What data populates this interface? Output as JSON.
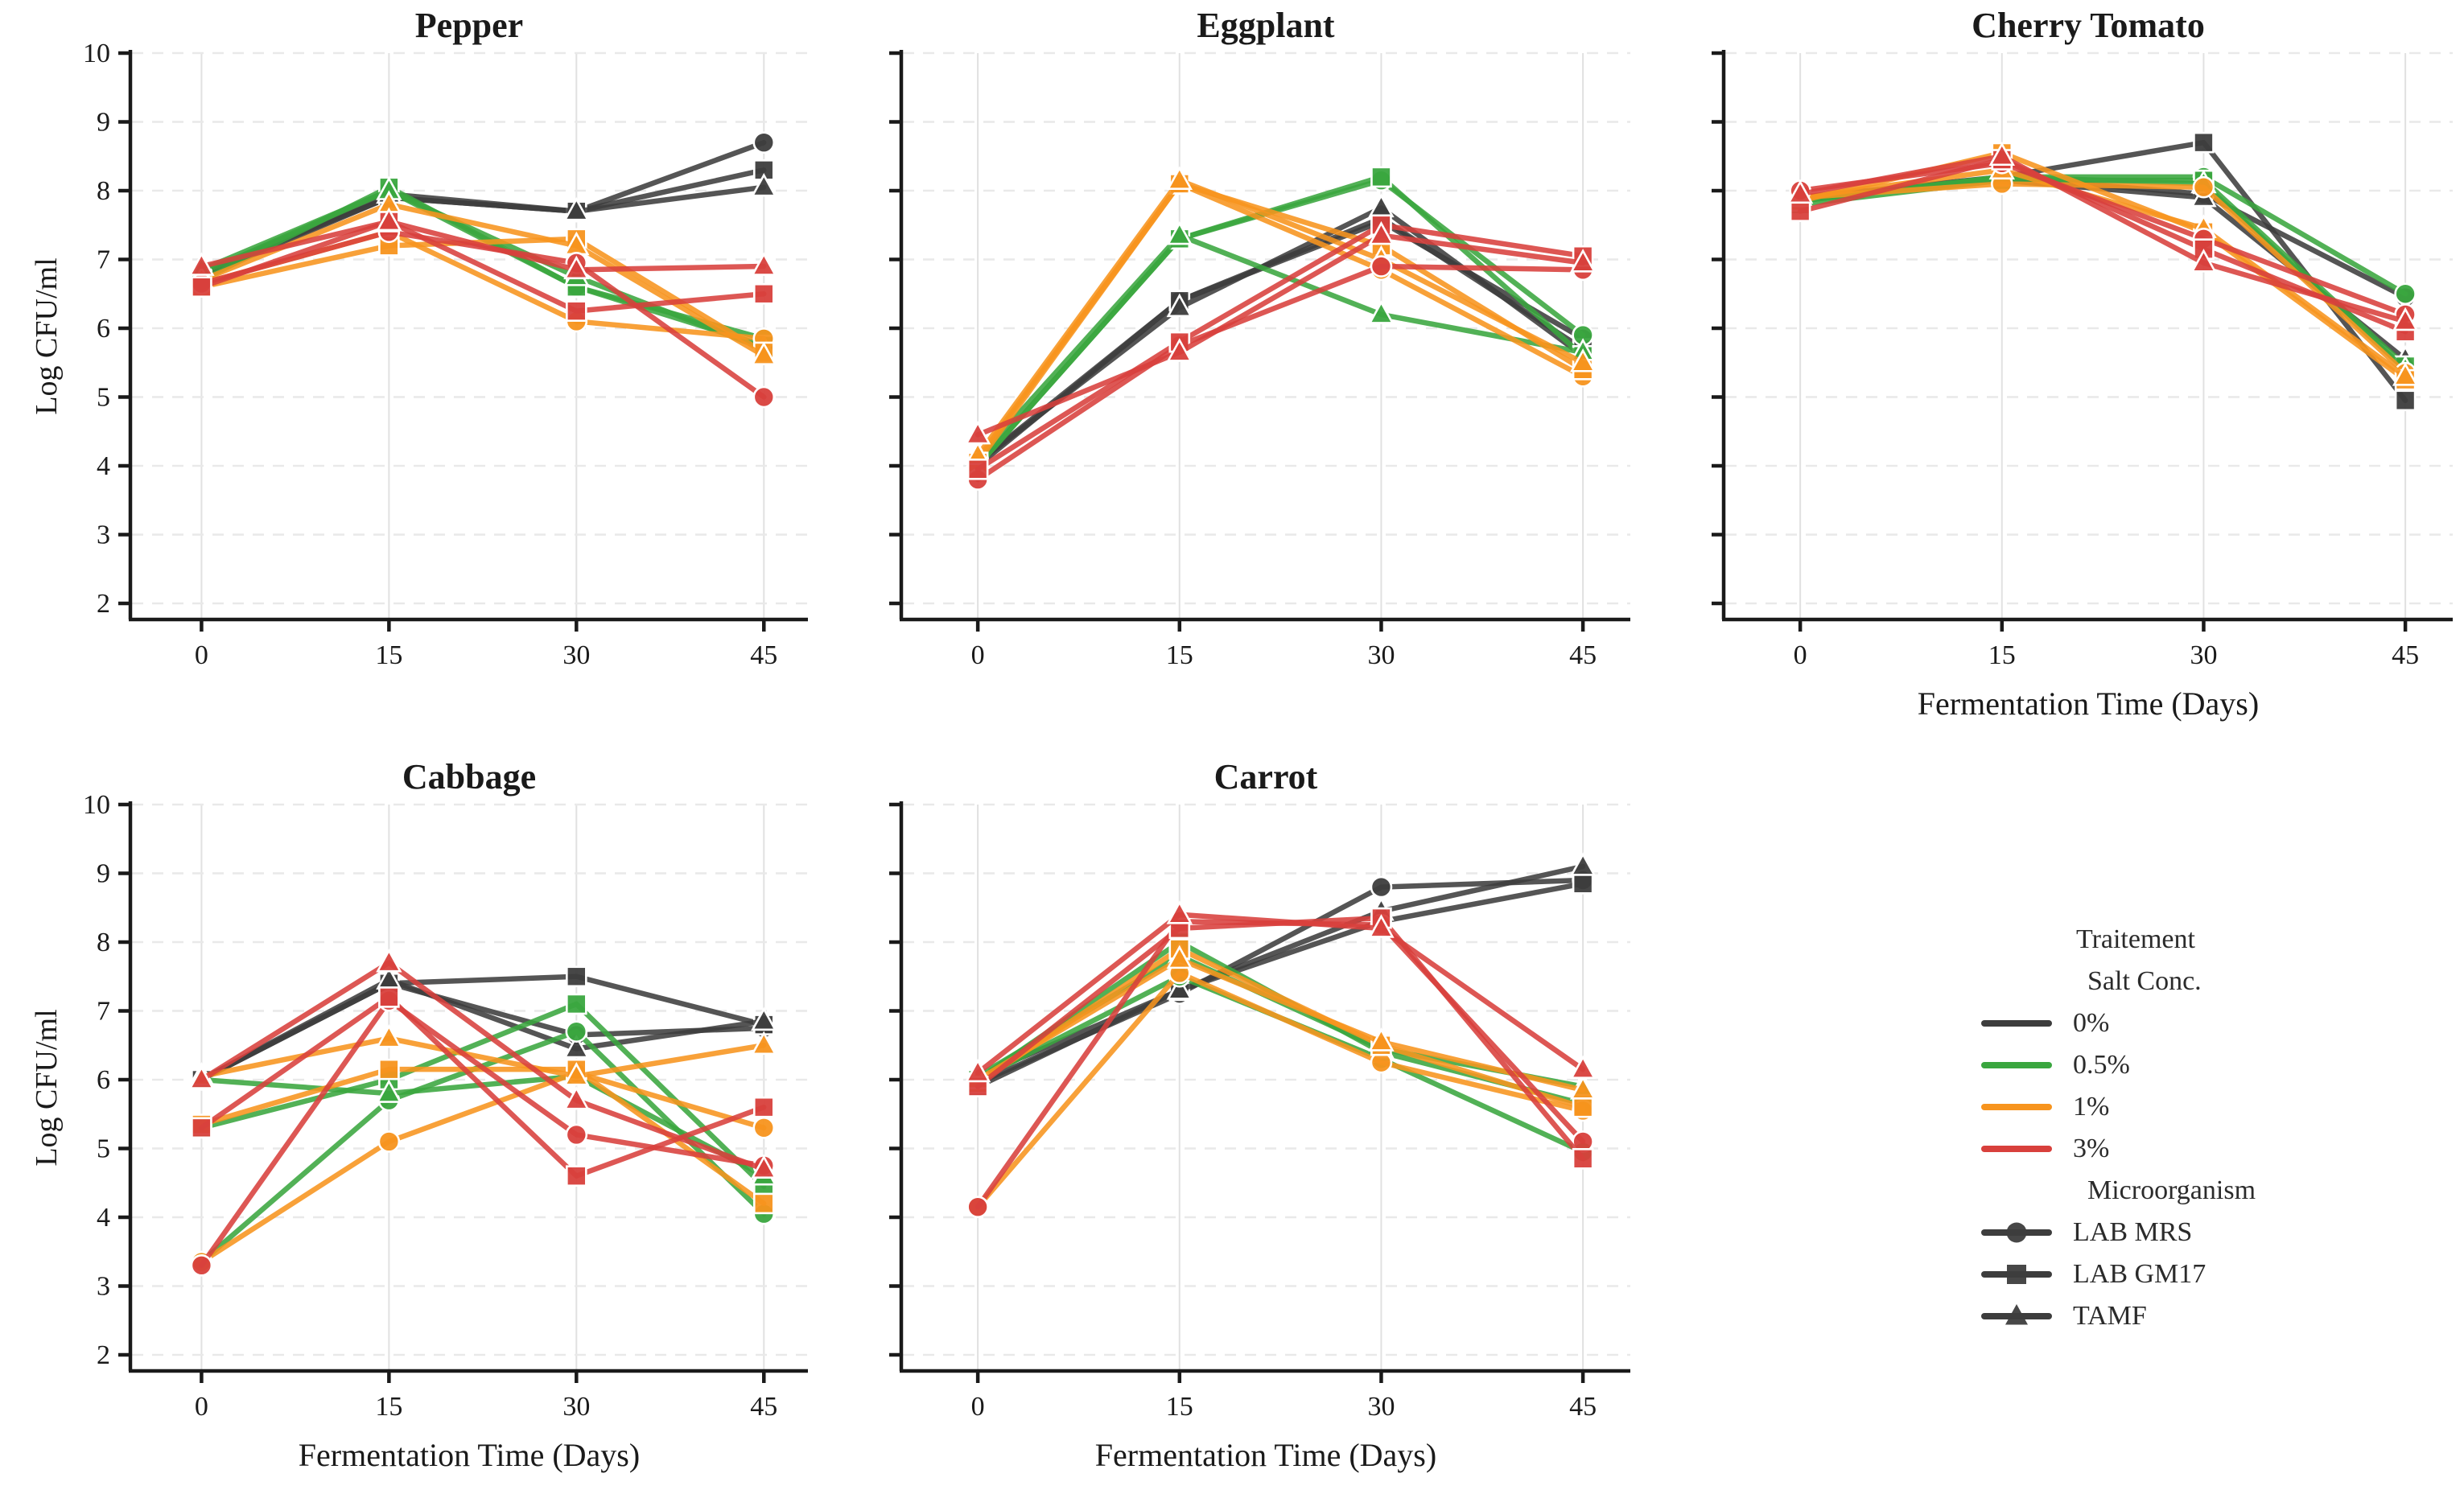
{
  "figure": {
    "background": "#ffffff",
    "grid_color_h": "#e9e9e9",
    "grid_color_v": "#e1e1e1",
    "spine_color": "#1a1a1a"
  },
  "chart_data": {
    "type": "line",
    "x": [
      0,
      15,
      30,
      45
    ],
    "xlabel": "Fermentation Time (Days)",
    "ylabel": "Log CFU/ml",
    "ylim": [
      2,
      10
    ],
    "y_ticks": [
      2,
      3,
      4,
      5,
      6,
      7,
      8,
      9,
      10
    ],
    "x_ticks": [
      0,
      15,
      30,
      45
    ],
    "grid": true,
    "legend_position": "bottom-right-cell",
    "salt_colors": {
      "0%": "#3d3d3d",
      "0.5%": "#3aa63f",
      "1%": "#f7941e",
      "3%": "#d8403c"
    },
    "organism_markers": {
      "LAB MRS": "circle",
      "LAB GM17": "square",
      "TAMF": "triangle"
    },
    "legend": {
      "title": "Traitement",
      "salt_header": "Salt Conc.",
      "salt_items": [
        "0%",
        "0.5%",
        "1%",
        "3%"
      ],
      "organism_header": "Microorganism",
      "organism_items": [
        "LAB MRS",
        "LAB GM17",
        "TAMF"
      ]
    },
    "panels": [
      {
        "id": "pepper",
        "title": "Pepper",
        "show_ylabel": true,
        "show_ytick_labels": true,
        "show_xlabel": false,
        "series": [
          {
            "salt": "0%",
            "organism": "LAB MRS",
            "values": [
              6.8,
              7.9,
              7.7,
              8.7
            ]
          },
          {
            "salt": "0%",
            "organism": "LAB GM17",
            "values": [
              6.75,
              7.9,
              7.7,
              8.3
            ]
          },
          {
            "salt": "0%",
            "organism": "TAMF",
            "values": [
              6.8,
              7.95,
              7.7,
              8.05
            ]
          },
          {
            "salt": "0.5%",
            "organism": "LAB MRS",
            "values": [
              6.8,
              8.0,
              6.6,
              5.85
            ]
          },
          {
            "salt": "0.5%",
            "organism": "LAB GM17",
            "values": [
              6.7,
              8.05,
              6.6,
              5.75
            ]
          },
          {
            "salt": "0.5%",
            "organism": "TAMF",
            "values": [
              6.85,
              8.0,
              6.75,
              5.7
            ]
          },
          {
            "salt": "1%",
            "organism": "LAB MRS",
            "values": [
              6.65,
              7.4,
              6.1,
              5.85
            ]
          },
          {
            "salt": "1%",
            "organism": "LAB GM17",
            "values": [
              6.6,
              7.2,
              7.3,
              5.65
            ]
          },
          {
            "salt": "1%",
            "organism": "TAMF",
            "values": [
              6.7,
              7.8,
              7.2,
              5.6
            ]
          },
          {
            "salt": "3%",
            "organism": "LAB MRS",
            "values": [
              6.65,
              7.4,
              6.95,
              5.0
            ]
          },
          {
            "salt": "3%",
            "organism": "LAB GM17",
            "values": [
              6.6,
              7.55,
              6.25,
              6.5
            ]
          },
          {
            "salt": "3%",
            "organism": "TAMF",
            "values": [
              6.9,
              7.55,
              6.85,
              6.9
            ]
          }
        ]
      },
      {
        "id": "eggplant",
        "title": "Eggplant",
        "show_ylabel": false,
        "show_ytick_labels": false,
        "show_xlabel": false,
        "series": [
          {
            "salt": "0%",
            "organism": "LAB MRS",
            "values": [
              4.05,
              6.4,
              7.55,
              5.85
            ]
          },
          {
            "salt": "0%",
            "organism": "LAB GM17",
            "values": [
              4.0,
              6.4,
              7.6,
              5.7
            ]
          },
          {
            "salt": "0%",
            "organism": "TAMF",
            "values": [
              4.05,
              6.3,
              7.75,
              5.6
            ]
          },
          {
            "salt": "0.5%",
            "organism": "LAB MRS",
            "values": [
              4.0,
              7.3,
              8.15,
              5.9
            ]
          },
          {
            "salt": "0.5%",
            "organism": "LAB GM17",
            "values": [
              4.0,
              7.3,
              8.2,
              5.6
            ]
          },
          {
            "salt": "0.5%",
            "organism": "TAMF",
            "values": [
              4.1,
              7.35,
              6.2,
              5.65
            ]
          },
          {
            "salt": "1%",
            "organism": "LAB MRS",
            "values": [
              4.1,
              8.1,
              6.85,
              5.3
            ]
          },
          {
            "salt": "1%",
            "organism": "LAB GM17",
            "values": [
              4.05,
              8.1,
              7.2,
              5.4
            ]
          },
          {
            "salt": "1%",
            "organism": "TAMF",
            "values": [
              4.15,
              8.15,
              7.0,
              5.5
            ]
          },
          {
            "salt": "3%",
            "organism": "LAB MRS",
            "values": [
              3.8,
              5.75,
              6.9,
              6.85
            ]
          },
          {
            "salt": "3%",
            "organism": "LAB GM17",
            "values": [
              3.95,
              5.8,
              7.5,
              7.05
            ]
          },
          {
            "salt": "3%",
            "organism": "TAMF",
            "values": [
              4.45,
              5.65,
              7.35,
              6.95
            ]
          }
        ]
      },
      {
        "id": "cherry-tomato",
        "title": "Cherry Tomato",
        "show_ylabel": false,
        "show_ytick_labels": false,
        "show_xlabel": true,
        "series": [
          {
            "salt": "0%",
            "organism": "LAB MRS",
            "values": [
              7.9,
              8.2,
              7.95,
              6.45
            ]
          },
          {
            "salt": "0%",
            "organism": "LAB GM17",
            "values": [
              7.85,
              8.2,
              8.7,
              4.95
            ]
          },
          {
            "salt": "0%",
            "organism": "TAMF",
            "values": [
              7.9,
              8.15,
              7.9,
              5.55
            ]
          },
          {
            "salt": "0.5%",
            "organism": "LAB MRS",
            "values": [
              7.85,
              8.2,
              8.2,
              6.5
            ]
          },
          {
            "salt": "0.5%",
            "organism": "LAB GM17",
            "values": [
              7.8,
              8.15,
              8.15,
              5.45
            ]
          },
          {
            "salt": "0.5%",
            "organism": "TAMF",
            "values": [
              7.85,
              8.2,
              8.1,
              5.4
            ]
          },
          {
            "salt": "1%",
            "organism": "LAB MRS",
            "values": [
              7.9,
              8.1,
              8.05,
              5.35
            ]
          },
          {
            "salt": "1%",
            "organism": "LAB GM17",
            "values": [
              7.85,
              8.55,
              7.4,
              5.25
            ]
          },
          {
            "salt": "1%",
            "organism": "TAMF",
            "values": [
              7.9,
              8.3,
              7.45,
              5.3
            ]
          },
          {
            "salt": "3%",
            "organism": "LAB MRS",
            "values": [
              8.0,
              8.4,
              7.3,
              6.2
            ]
          },
          {
            "salt": "3%",
            "organism": "LAB GM17",
            "values": [
              7.7,
              8.45,
              7.15,
              5.95
            ]
          },
          {
            "salt": "3%",
            "organism": "TAMF",
            "values": [
              7.95,
              8.5,
              6.95,
              6.1
            ]
          }
        ]
      },
      {
        "id": "cabbage",
        "title": "Cabbage",
        "show_ylabel": true,
        "show_ytick_labels": true,
        "show_xlabel": true,
        "series": [
          {
            "salt": "0%",
            "organism": "LAB MRS",
            "values": [
              6.0,
              7.4,
              6.65,
              6.75
            ]
          },
          {
            "salt": "0%",
            "organism": "LAB GM17",
            "values": [
              6.0,
              7.4,
              7.5,
              6.8
            ]
          },
          {
            "salt": "0%",
            "organism": "TAMF",
            "values": [
              6.0,
              7.45,
              6.45,
              6.85
            ]
          },
          {
            "salt": "0.5%",
            "organism": "LAB MRS",
            "values": [
              3.35,
              5.7,
              6.7,
              4.05
            ]
          },
          {
            "salt": "0.5%",
            "organism": "LAB GM17",
            "values": [
              5.3,
              6.0,
              7.1,
              4.45
            ]
          },
          {
            "salt": "0.5%",
            "organism": "TAMF",
            "values": [
              6.0,
              5.8,
              6.05,
              4.6
            ]
          },
          {
            "salt": "1%",
            "organism": "LAB MRS",
            "values": [
              3.35,
              5.1,
              6.1,
              5.3
            ]
          },
          {
            "salt": "1%",
            "organism": "LAB GM17",
            "values": [
              5.35,
              6.15,
              6.15,
              4.2
            ]
          },
          {
            "salt": "1%",
            "organism": "TAMF",
            "values": [
              6.05,
              6.6,
              6.05,
              6.5
            ]
          },
          {
            "salt": "3%",
            "organism": "LAB MRS",
            "values": [
              3.3,
              7.15,
              5.2,
              4.75
            ]
          },
          {
            "salt": "3%",
            "organism": "LAB GM17",
            "values": [
              5.3,
              7.2,
              4.6,
              5.6
            ]
          },
          {
            "salt": "3%",
            "organism": "TAMF",
            "values": [
              6.0,
              7.7,
              5.7,
              4.7
            ]
          }
        ]
      },
      {
        "id": "carrot",
        "title": "Carrot",
        "show_ylabel": false,
        "show_ytick_labels": false,
        "show_xlabel": true,
        "series": [
          {
            "salt": "0%",
            "organism": "LAB MRS",
            "values": [
              5.95,
              7.25,
              8.8,
              8.9
            ]
          },
          {
            "salt": "0%",
            "organism": "LAB GM17",
            "values": [
              5.9,
              7.3,
              8.3,
              8.85
            ]
          },
          {
            "salt": "0%",
            "organism": "TAMF",
            "values": [
              6.05,
              7.3,
              8.45,
              9.1
            ]
          },
          {
            "salt": "0.5%",
            "organism": "LAB MRS",
            "values": [
              6.0,
              7.5,
              6.3,
              4.95
            ]
          },
          {
            "salt": "0.5%",
            "organism": "LAB GM17",
            "values": [
              6.0,
              8.0,
              6.4,
              5.65
            ]
          },
          {
            "salt": "0.5%",
            "organism": "TAMF",
            "values": [
              6.05,
              7.8,
              6.45,
              5.9
            ]
          },
          {
            "salt": "1%",
            "organism": "LAB MRS",
            "values": [
              4.15,
              7.55,
              6.25,
              5.55
            ]
          },
          {
            "salt": "1%",
            "organism": "LAB GM17",
            "values": [
              5.95,
              7.9,
              6.5,
              5.6
            ]
          },
          {
            "salt": "1%",
            "organism": "TAMF",
            "values": [
              6.0,
              7.75,
              6.55,
              5.85
            ]
          },
          {
            "salt": "3%",
            "organism": "LAB MRS",
            "values": [
              4.15,
              8.3,
              8.25,
              5.1
            ]
          },
          {
            "salt": "3%",
            "organism": "LAB GM17",
            "values": [
              5.9,
              8.2,
              8.35,
              4.85
            ]
          },
          {
            "salt": "3%",
            "organism": "TAMF",
            "values": [
              6.1,
              8.4,
              8.2,
              6.15
            ]
          }
        ]
      }
    ]
  }
}
